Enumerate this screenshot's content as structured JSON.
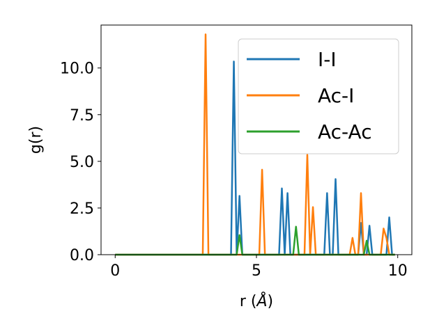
{
  "chart_data": {
    "type": "line",
    "xlabel": "r (",
    "xlabel_unit": "Å",
    "xlabel_close": ")",
    "ylabel": "g(r)",
    "xlim": [
      -0.5,
      10.5
    ],
    "ylim": [
      0,
      12.3
    ],
    "xticks": [
      0,
      5,
      10
    ],
    "xtick_labels": [
      "0",
      "5",
      "10"
    ],
    "yticks": [
      0.0,
      2.5,
      5.0,
      7.5,
      10.0
    ],
    "ytick_labels": [
      "0.0",
      "2.5",
      "5.0",
      "7.5",
      "10.0"
    ],
    "grid": false,
    "legend_position": "upper-right",
    "series": [
      {
        "name": "I-I",
        "color": "#1f77b4",
        "x": [
          0.0,
          4.1,
          4.2,
          4.3,
          4.4,
          4.5,
          5.8,
          5.9,
          6.0,
          6.1,
          6.2,
          6.3,
          7.4,
          7.5,
          7.6,
          7.7,
          7.8,
          7.9,
          8.6,
          8.7,
          8.8,
          8.9,
          9.0,
          9.1,
          9.6,
          9.7,
          9.8,
          9.9
        ],
        "y": [
          0.0,
          0.0,
          10.35,
          0.0,
          3.15,
          0.0,
          0.0,
          3.55,
          0.0,
          3.3,
          0.0,
          0.0,
          0.0,
          3.3,
          0.0,
          0.0,
          4.05,
          0.0,
          0.0,
          1.7,
          0.0,
          0.0,
          1.55,
          0.0,
          0.0,
          2.0,
          0.0,
          0.0
        ]
      },
      {
        "name": "Ac-I",
        "color": "#ff7f0e",
        "x": [
          0.0,
          3.1,
          3.2,
          3.3,
          5.1,
          5.2,
          5.3,
          6.7,
          6.8,
          6.9,
          7.0,
          7.1,
          8.3,
          8.4,
          8.5,
          8.6,
          8.7,
          8.8,
          9.4,
          9.5,
          9.6,
          9.7,
          9.8,
          9.9
        ],
        "y": [
          0.0,
          0.0,
          11.8,
          0.0,
          0.0,
          4.55,
          0.0,
          0.0,
          5.35,
          0.0,
          2.55,
          0.0,
          0.0,
          0.9,
          0.0,
          0.0,
          3.3,
          0.0,
          0.0,
          1.4,
          0.9,
          0.0,
          0.0,
          0.0
        ]
      },
      {
        "name": "Ac-Ac",
        "color": "#2ca02c",
        "x": [
          0.0,
          4.3,
          4.4,
          4.5,
          6.3,
          6.4,
          6.5,
          8.8,
          8.9,
          9.0,
          9.9
        ],
        "y": [
          0.0,
          0.0,
          1.05,
          0.0,
          0.0,
          1.5,
          0.0,
          0.0,
          0.75,
          0.0,
          0.0
        ]
      }
    ]
  }
}
